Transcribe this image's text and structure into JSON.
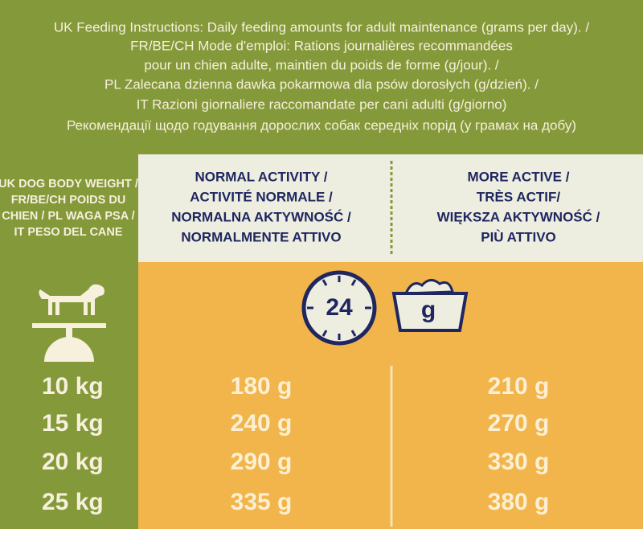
{
  "header": {
    "lines": [
      "UK Feeding Instructions: Daily feeding amounts for adult maintenance (grams per day). /",
      "FR/BE/CH Mode d'emploi: Rations journalières recommandées",
      "pour un chien adulte, maintien du poids de forme (g/jour). /",
      "PL Zalecana dzienna dawka pokarmowa dla psów dorosłych (g/dzień). /",
      "IT Razioni giornaliere raccomandate per cani adulti (g/giorno)",
      "Рекомендації щодо годування дорослих собак середніх порід (у грамах на добу)"
    ]
  },
  "table": {
    "row_header": [
      "UK DOG BODY WEIGHT /",
      "FR/BE/CH POIDS DU",
      "CHIEN / PL WAGA PSA /",
      "IT PESO DEL CANE"
    ],
    "columns": [
      [
        "NORMAL ACTIVITY /",
        "ACTIVITÉ NORMALE /",
        "NORMALNA AKTYWNOŚĆ /",
        "NORMALMENTE ATTIVO"
      ],
      [
        "MORE ACTIVE /",
        "TRÈS ACTIF/",
        "WIĘKSZA AKTYWNOŚĆ /",
        "PIÙ ATTIVO"
      ]
    ],
    "icons": {
      "clock": "24",
      "bowl": "g"
    },
    "rows": [
      {
        "weight": "10 kg",
        "values": [
          "180 g",
          "210 g"
        ]
      },
      {
        "weight": "15 kg",
        "values": [
          "240 g",
          "270 g"
        ]
      },
      {
        "weight": "20 kg",
        "values": [
          "290 g",
          "330 g"
        ]
      },
      {
        "weight": "25 kg",
        "values": [
          "335 g",
          "380 g"
        ]
      }
    ]
  }
}
